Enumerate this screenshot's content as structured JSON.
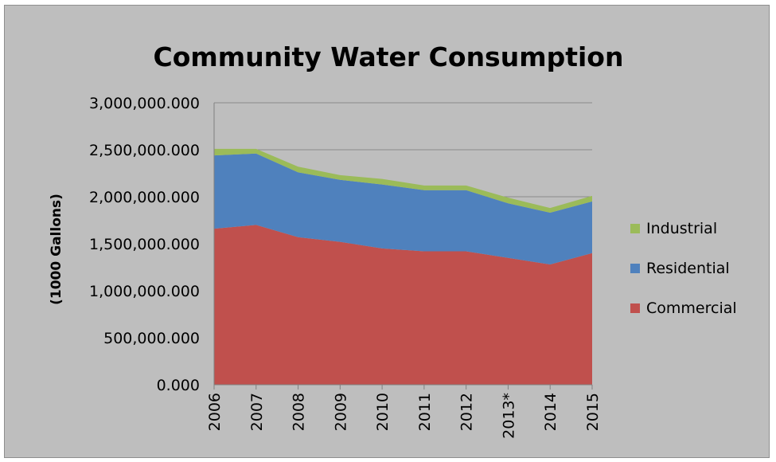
{
  "chart_data": {
    "type": "area",
    "stacked": true,
    "title": "Community Water Consumption",
    "xlabel": "",
    "ylabel": "(1000 Gallons)",
    "ylim": [
      0,
      3000000000
    ],
    "y_tick_labels": [
      "0.000",
      "500,000.000",
      "1,000,000.000",
      "1,500,000.000",
      "2,000,000.000",
      "2,500,000.000",
      "3,000,000.000"
    ],
    "categories": [
      "2006",
      "2007",
      "2008",
      "2009",
      "2010",
      "2011",
      "2012",
      "2013*",
      "2014",
      "2015"
    ],
    "series": [
      {
        "name": "Commercial",
        "color": "#c0504d",
        "values": [
          1660000000,
          1700000000,
          1570000000,
          1520000000,
          1450000000,
          1420000000,
          1420000000,
          1350000000,
          1280000000,
          1400000000
        ]
      },
      {
        "name": "Residential",
        "color": "#4f81bd",
        "values": [
          780000000,
          760000000,
          690000000,
          660000000,
          680000000,
          650000000,
          650000000,
          580000000,
          550000000,
          550000000
        ]
      },
      {
        "name": "Industrial",
        "color": "#9bbb59",
        "values": [
          70000000,
          50000000,
          60000000,
          50000000,
          60000000,
          50000000,
          50000000,
          60000000,
          50000000,
          60000000
        ]
      }
    ],
    "legend_order": [
      "Industrial",
      "Residential",
      "Commercial"
    ],
    "legend_position": "right",
    "grid": true,
    "background": "#bebebe"
  }
}
